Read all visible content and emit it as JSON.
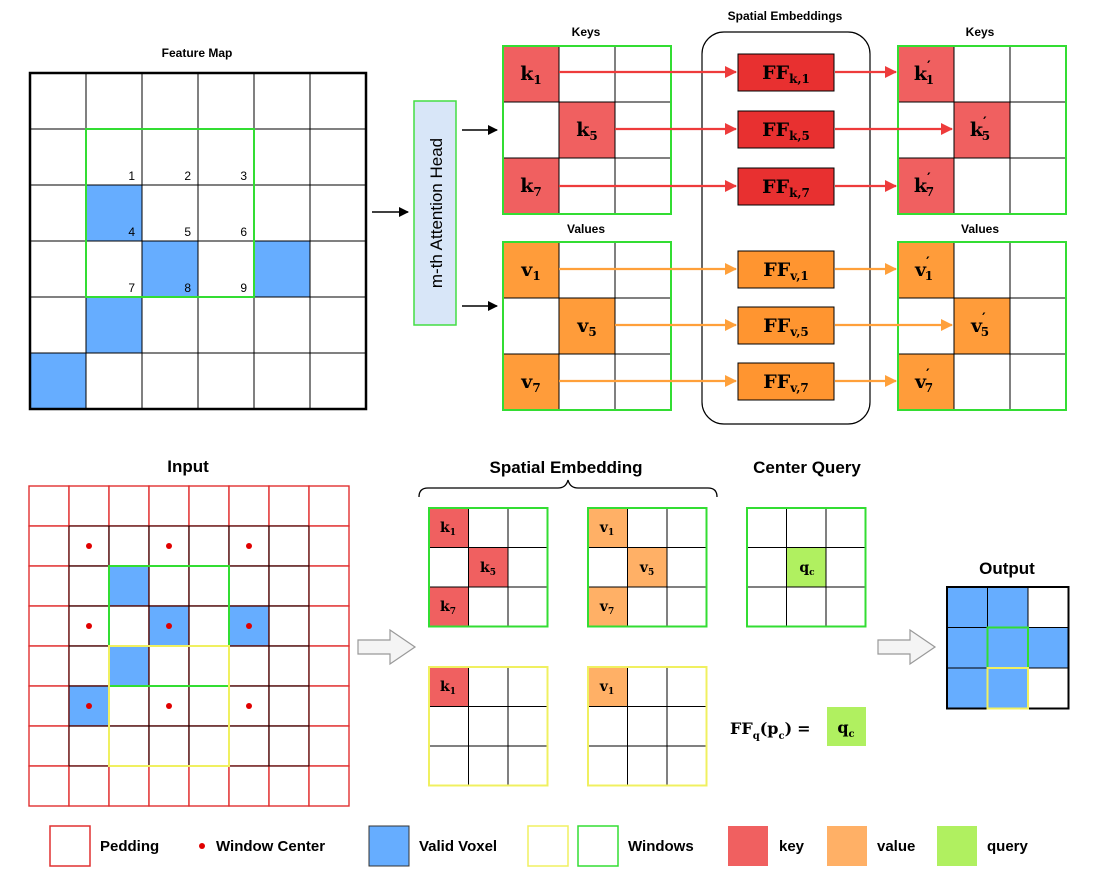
{
  "top": {
    "feature_map": {
      "title": "Feature Map",
      "blue_cells": [
        [
          2,
          1
        ],
        [
          3,
          2
        ],
        [
          3,
          4
        ],
        [
          4,
          1
        ],
        [
          5,
          0
        ]
      ],
      "numbers": [
        "1",
        "2",
        "3",
        "4",
        "5",
        "6",
        "7",
        "8",
        "9"
      ]
    },
    "attention_head": "m-th Attention Head",
    "spatial_embeddings_title": "Spatial Embeddings",
    "keys_title": "Keys",
    "keys_out_title": "Keys",
    "values_title": "Values",
    "values_out_title": "Values",
    "keys": [
      {
        "base": "k",
        "sub": "1",
        "ff_sub": "k,1"
      },
      {
        "base": "k",
        "sub": "5",
        "ff_sub": "k,5"
      },
      {
        "base": "k",
        "sub": "7",
        "ff_sub": "k,7"
      }
    ],
    "values": [
      {
        "base": "v",
        "sub": "1",
        "ff_sub": "v,1"
      },
      {
        "base": "v",
        "sub": "5",
        "ff_sub": "v,5"
      },
      {
        "base": "v",
        "sub": "7",
        "ff_sub": "v,7"
      }
    ],
    "ff_base": "FF",
    "prime": "′"
  },
  "bottom": {
    "input_title": "Input",
    "spatial_embedding_title": "Spatial Embedding",
    "center_query_title": "Center Query",
    "output_title": "Output",
    "k_cells": [
      "k",
      "1",
      "k",
      "5",
      "k",
      "7"
    ],
    "v_cells": [
      "v",
      "1",
      "v",
      "5",
      "v",
      "7"
    ],
    "q_base": "q",
    "q_sub": "c",
    "formula": {
      "ff": "FF",
      "ff_sub": "q",
      "arg": "(p",
      "arg_sub": "c",
      "close": ")",
      "eq": "=",
      "rhs": "q",
      "rhs_sub": "c"
    }
  },
  "legend": {
    "padding": "Pedding",
    "window_center": "Window Center",
    "valid_voxel": "Valid Voxel",
    "windows": "Windows",
    "key": "key",
    "value": "value",
    "query": "query"
  },
  "colors": {
    "blue": "#66adff",
    "green": "#33dd33",
    "red_grid": "#e03030",
    "key": "#f06060",
    "value": "#ff9c3a",
    "value_light": "#ffb066",
    "ff_key": "#e83030",
    "ff_value": "#ff9530",
    "arrow_key": "#ee3b3b",
    "arrow_value": "#ffa03a",
    "query": "#b0f060",
    "yellow": "#f0f060"
  }
}
